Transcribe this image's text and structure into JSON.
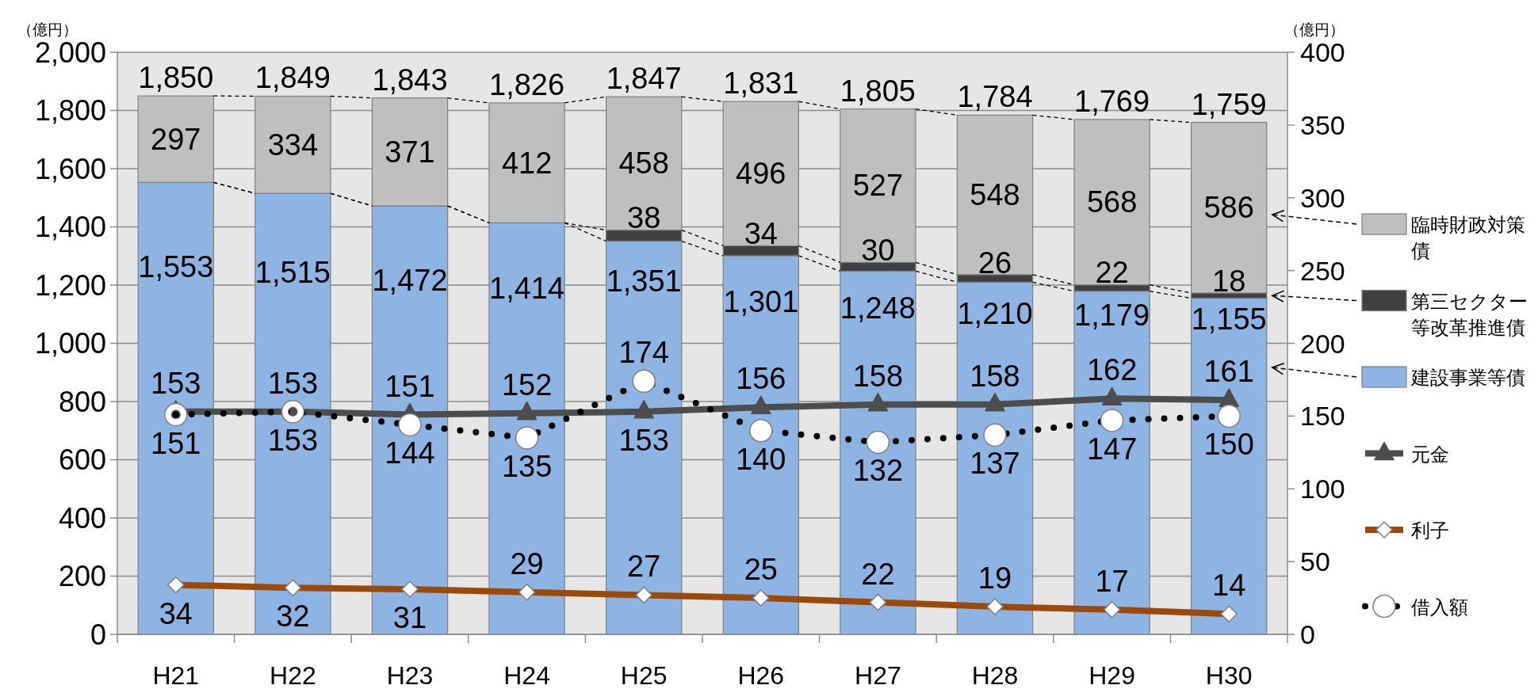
{
  "chart_data": {
    "type": "bar",
    "stacked": true,
    "ylabel": "（億円）",
    "y2label": "（億円）",
    "categories": [
      "H21",
      "H22",
      "H23",
      "H24",
      "H25",
      "H26",
      "H27",
      "H28",
      "H29",
      "H30"
    ],
    "series": [
      {
        "name": "建設事業等債",
        "color": "#8db4e2",
        "values": [
          1553,
          1515,
          1472,
          1414,
          1351,
          1301,
          1248,
          1210,
          1179,
          1155
        ],
        "value_labels": [
          "1,553",
          "1,515",
          "1,472",
          "1,414",
          "1,351",
          "1,301",
          "1,248",
          "1,210",
          "1,179",
          "1,155"
        ]
      },
      {
        "name": "第三セクター等改革推進債",
        "color": "#404040",
        "values": [
          null,
          null,
          null,
          null,
          38,
          34,
          30,
          26,
          22,
          18
        ],
        "value_labels": [
          null,
          null,
          null,
          null,
          "38",
          "34",
          "30",
          "26",
          "22",
          "18"
        ]
      },
      {
        "name": "臨時財政対策債",
        "color": "#bfbfbf",
        "values": [
          297,
          334,
          371,
          412,
          458,
          496,
          527,
          548,
          568,
          586
        ],
        "value_labels": [
          "297",
          "334",
          "371",
          "412",
          "458",
          "496",
          "527",
          "548",
          "568",
          "586"
        ]
      },
      {
        "name": "元金",
        "type": "line",
        "axis": "y2",
        "color": "#4d4d4d",
        "marker": "triangle",
        "line_style": "solid",
        "values": [
          153,
          153,
          151,
          152,
          153,
          156,
          158,
          158,
          162,
          161
        ],
        "value_labels": [
          "153",
          "153",
          "151",
          "152",
          "153",
          "156",
          "158",
          "158",
          "162",
          "161"
        ]
      },
      {
        "name": "利子",
        "type": "line",
        "axis": "y2",
        "color": "#9c4a0c",
        "marker": "diamond",
        "line_style": "solid",
        "values": [
          34,
          32,
          31,
          29,
          27,
          25,
          22,
          19,
          17,
          14
        ],
        "value_labels": [
          "34",
          "32",
          "31",
          "29",
          "27",
          "25",
          "22",
          "19",
          "17",
          "14"
        ]
      },
      {
        "name": "借入額",
        "type": "line",
        "axis": "y2",
        "color": "#000000",
        "marker": "circle",
        "line_style": "dotted",
        "values": [
          151,
          153,
          144,
          135,
          174,
          140,
          132,
          137,
          147,
          150
        ],
        "value_labels": [
          "151",
          "153",
          "144",
          "135",
          "174",
          "140",
          "132",
          "137",
          "147",
          "150"
        ]
      }
    ],
    "totals": [
      "1,850",
      "1,849",
      "1,843",
      "1,826",
      "1,847",
      "1,831",
      "1,805",
      "1,784",
      "1,769",
      "1,759"
    ],
    "ylim": [
      0,
      2000
    ],
    "yticks": [
      0,
      200,
      400,
      600,
      800,
      {
        "value": 1000,
        "label": "1,000"
      },
      {
        "value": 1200,
        "label": "1,200"
      },
      {
        "value": 1400,
        "label": "1,400"
      },
      {
        "value": 1600,
        "label": "1,600"
      },
      {
        "value": 1800,
        "label": "1,800"
      },
      {
        "value": 2000,
        "label": "2,000"
      }
    ],
    "y2lim": [
      0,
      400
    ],
    "y2ticks": [
      0,
      50,
      100,
      150,
      200,
      250,
      300,
      350,
      400
    ],
    "grid": "y",
    "legend": "right"
  }
}
